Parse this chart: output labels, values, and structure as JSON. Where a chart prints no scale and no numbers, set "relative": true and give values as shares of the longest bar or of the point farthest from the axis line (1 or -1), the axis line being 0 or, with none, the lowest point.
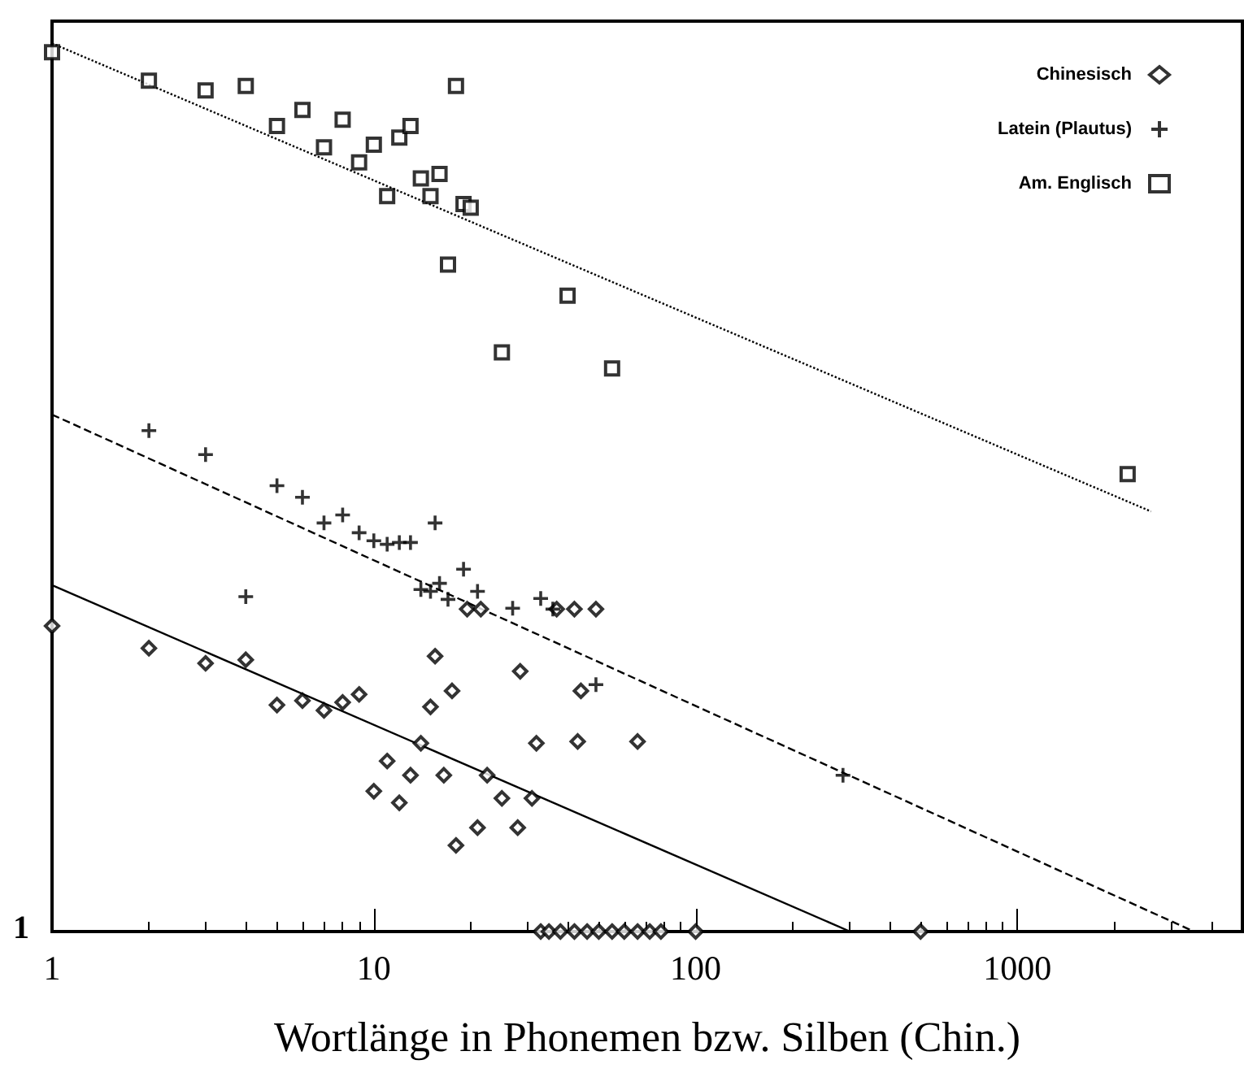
{
  "chart_data": {
    "type": "scatter",
    "relative": true,
    "log": "x",
    "xlabel": "Wortlänge in Phonemen bzw. Silben (Chin.)",
    "xlim": [
      1,
      5000
    ],
    "xticks": [
      1,
      10,
      100,
      1000
    ],
    "grid": false,
    "legend": "top right",
    "annotations": [
      "1"
    ],
    "series": [
      {
        "name": "Chinesisch",
        "marker": "diamond",
        "color": "#000000",
        "x": [
          1,
          2,
          3,
          4,
          5,
          6,
          7,
          8,
          9,
          10,
          11,
          12,
          13,
          14,
          15,
          15.5,
          16.5,
          17.5,
          18,
          19.5,
          21,
          21.5,
          22.5,
          25,
          28,
          28.5,
          30,
          31,
          32,
          37,
          42,
          43,
          44,
          49,
          66,
          33,
          35,
          38,
          42,
          46,
          50,
          55,
          60,
          66,
          72,
          78,
          100,
          500
        ],
        "values": [
          0.344,
          0.319,
          0.302,
          0.306,
          0.255,
          0.26,
          0.249,
          0.258,
          0.267,
          0.158,
          0.192,
          0.145,
          0.176,
          0.212,
          0.253,
          0.31,
          0.176,
          0.271,
          0.097,
          0.363,
          0.117,
          0.363,
          0.176,
          0.15,
          0.117,
          0.293,
          null,
          0.15,
          0.212,
          0.363,
          0.363,
          0.214,
          0.271,
          0.363,
          0.214,
          0,
          0,
          0,
          0,
          0,
          0,
          0,
          0,
          0,
          0,
          0,
          0,
          0
        ]
      },
      {
        "name": "Latein (Plautus)",
        "marker": "cross",
        "color": "#000000",
        "x": [
          2,
          3,
          4,
          5,
          6,
          7,
          8,
          9,
          10,
          11,
          12,
          13,
          14,
          15,
          15.5,
          16,
          17,
          19,
          21,
          27,
          33,
          36,
          49,
          287
        ],
        "values": [
          0.564,
          0.537,
          0.377,
          0.502,
          0.489,
          0.46,
          0.469,
          0.449,
          0.44,
          0.436,
          0.438,
          0.438,
          0.385,
          0.383,
          0.46,
          0.392,
          0.374,
          0.408,
          0.383,
          0.364,
          0.375,
          0.363,
          0.278,
          0.176
        ]
      },
      {
        "name": "Am. Englisch",
        "marker": "square",
        "color": "#000000",
        "x": [
          1,
          2,
          3,
          4,
          5,
          6,
          7,
          8,
          9,
          10,
          11,
          12,
          13,
          14,
          15,
          16,
          17,
          18,
          19,
          20,
          25,
          40,
          55,
          2200
        ],
        "values": [
          0.99,
          0.958,
          0.947,
          0.952,
          0.907,
          0.925,
          0.883,
          0.914,
          0.866,
          0.886,
          0.828,
          0.894,
          0.907,
          0.848,
          0.828,
          0.853,
          0.751,
          0.952,
          0.819,
          0.815,
          0.652,
          0.716,
          0.634,
          0.515
        ]
      },
      {
        "type": "line",
        "line_style": "solid",
        "color": "#000000",
        "x": [
          1,
          302
        ],
        "values": [
          0.39,
          0
        ]
      },
      {
        "type": "line",
        "line_style": "dashed",
        "color": "#000000",
        "x": [
          1,
          3540
        ],
        "values": [
          0.582,
          0
        ]
      },
      {
        "type": "line",
        "line_style": "dotted",
        "color": "#000000",
        "x": [
          1,
          2600
        ],
        "values": [
          1,
          0.473
        ]
      }
    ]
  }
}
